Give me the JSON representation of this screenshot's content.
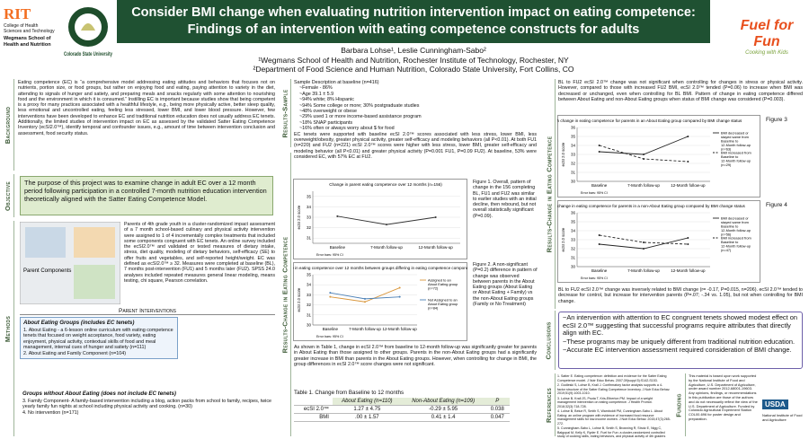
{
  "header": {
    "title_line1": "Consider BMI change when evaluating nutrition intervention impact on eating competence:",
    "title_line2": "Findings of an intervention with eating competence constructs for adults",
    "authors": "Barbara Lohse¹, Leslie Cunningham-Sabo²",
    "affil1": "¹Wegmans School of Health and Nutrition, Rochester Institute of Technology, Rochester, NY",
    "affil2": "²Department of Food Science and Human Nutrition, Colorado State University, Fort Collins, CO",
    "rit": "RIT",
    "rit_sub": "College of Health Sciences and Technology",
    "rit_sub2": "Wegmans School of Health and Nutrition",
    "csu": "Colorado State University",
    "fuel": "Fuel for Fun",
    "fuel_sub": "Cooking with Kids"
  },
  "background": {
    "label": "Background",
    "text": "Eating competence (EC) is “a comprehensive model addressing eating attitudes and behaviors that focuses not on nutrients, portion size, or food groups, but rather on enjoying food and eating, paying attention to variety in the diet, attending to signals of hunger and satiety, and preparing meals and snacks regularly with some attention to nourishing food and the environment in which it is consumed.” Instilling EC is important because studies show that being competent is a proxy for many practices associated with a healthful lifestyle, e.g., being more physically active, better sleep quality, less emotional and uncontrolled eating, feeling less stressed, lower BMI, and lower blood pressure. However, few interventions have been developed to enhance EC and traditional nutrition education does not usually address EC tenets. Additionally, the limited studies of intervention impact on EC as assessed by the validated Satter Eating Competence Inventory (ecSI2.0™), identify temporal and confounder issues, e.g., amount of time between intervention conclusion and assessment, food security status."
  },
  "objective": {
    "label": "Objective",
    "text": "The purpose of this project was to examine change in adult EC over a 12 month period following participation in a controlled 7-month nutrition education intervention theoretically aligned with the Satter Eating Competence Model."
  },
  "methods": {
    "label": "Methods",
    "image_label": "Parent Components",
    "text": "Parents of 4th grade youth in a cluster-randomized impact assessment of a 7 month school-based culinary and physical activity intervention were assigned to 1 of 4 incrementally complex treatments that included some components congruent with EC tenets. An online survey included the ecSI2.0™ and validated or tested measures of dietary intake, stress, diet quality, modeling of dietary behaviors, self-efficacy (SE) to offer fruits and vegetables, and self-reported height/weight. EC was defined as ecSI2.0™ ≥ 32. Measures were completed at baseline (BL), 7 months post-intervention (FU1) and 5 months later (FU2). SPSS 24.0 analyses included repeated measures general linear modeling, means testing, chi square, Pearson correlation.",
    "interventions_heading": "Parent Interventions",
    "group1_heading": "About Eating Groups (includes EC tenets)",
    "group1_items": [
      "1. About Eating - a 6-lesson online curriculum with eating competence tenets that focused on weight acceptance, food variety, eating enjoyment, physical activity, contextual skills of food and meal management, internal cues of hunger and satiety (n=111)",
      "2. About Eating and Family Component (n=104)"
    ],
    "group2_heading": "Groups without About Eating (does not include EC tenets)",
    "group2_items": [
      "3. Family Component- A family-based intervention including a blog, action packs from school to family, recipes, twice yearly family fun nights at school including physical activity and cooking. (n=30)",
      "4. No intervention (n=171)"
    ]
  },
  "sample": {
    "label": "Results-Sample",
    "heading": "Sample Description at baseline (n=416)",
    "items": [
      "~Female - 86%",
      "~Age 39.1 ± 5.9",
      "~94% white; 8% Hispanic",
      "~94% Some college or more; 30% postgraduate studies",
      "~48% overweight or obese",
      "~29% used 1 or more income-based assistance program",
      "~18% SNAP participants",
      "~16% often or always worry about $ for food"
    ],
    "text": "EC tenets were supported with baseline ecSI 2.0™ scores associated with less stress, lower BMI, less overweight/obesity, greater physical activity, greater self-efficacy and modeling behaviors (all P<0.01). At both FU1 (n=220) and FU2 (n=221) ecSI 2.0™ scores were higher with less stress, lower BMI, greater self-efficacy and modeling behavior (all P<0.01) and greater physical activity (P=0.001 FU1, P=0.09 FU2). At baseline, 53% were considered EC, with 57% EC at FU2."
  },
  "change": {
    "label": "Results-Change in Eating Competence",
    "fig1_caption": "Figure 1. Overall, pattern of change in the 156 completing BL, FU1 and FU2 was similar to earlier studies with an initial decline, then rebound, but not overall statistically significant (P=0.09).",
    "fig2_caption": "Figure 2. A non-significant (P=0.2) difference in pattern of change was observed between parents in the About Eating groups (About Eating or About Eating + Family) vs the non-About Eating groups (Family or No Treatment)",
    "text": "As shown in Table 1, change in ecSI 2.0™ from baseline to 12-month follow-up was significantly greater for parents in About Eating than those assigned to other groups. Parents in the non-About Eating groups had a significantly greater increase in BMI than parents in the About Eating groups. However, when controlling for change in BMI, the group differences in ecSI 2.0™ score changes were not significant.",
    "table": {
      "title": "Table 1. Change from Baseline to 12 months",
      "header": [
        "About Eating (n=110)",
        "Non-About Eating (n=109)",
        "P"
      ],
      "rows": [
        [
          "ecSI 2.0™",
          "1.27 ± 4.75",
          "-0.29 ± 5.95",
          "0.038"
        ],
        [
          "BMI",
          ".00 ± 1.57",
          "0.41 ± 1.4",
          "0.047"
        ]
      ]
    },
    "text2": "BL to FU2 ecSI 2.0™ change was not significant when controlling for changes in stress or physical activity. However, compared to those with increased FU2 BMI, ecSI 2.0™ tended (P=0.06) to increase when BMI was decreased or unchanged, even when controlling for BL BMI. Pattern of change in eating competence differed between About Eating and non-About Eating groups when status of BMI change was considered (P=0.003).",
    "fig3_label": "Figure 3",
    "fig4_label": "Figure 4",
    "text3": "BL to FU2 ecSI 2.0™ change was inversely related to BMI change (r= -0.17, P=0.015, n=206). ecSI 2.0™ tended to decrease for control, but increase for intervention parents (P=.07; -.34 vs. 1.05), but not when controlling for BMI change."
  },
  "charts": [
    {
      "title": "Change in parent eating competence over 12 months (n=156)",
      "ylabel": "ecSI 2.0 score",
      "xlabels": [
        "Baseline",
        "7-Month follow-up",
        "12-Month follow-up"
      ],
      "note": "Error bars: 95% CI",
      "ylim": [
        30.5,
        35.5
      ],
      "yticks": [
        31,
        32,
        33,
        34,
        35
      ],
      "series": [
        {
          "name": null,
          "color": "#333333",
          "dashed": false,
          "values": [
            33.1,
            32.3,
            33.0
          ]
        }
      ]
    },
    {
      "title": "Comparison of change in eating competence over 12 months between groups differing in eating competence components",
      "ylabel": "ecSI 2.0 score",
      "xlabels": [
        "Baseline",
        "7-Month follow-up",
        "12-Month follow-up"
      ],
      "note": "Error bars: 95% CI",
      "ylim": [
        30,
        35
      ],
      "yticks": [
        30,
        31,
        32,
        33,
        34,
        35
      ],
      "series": [
        {
          "name": "Assigned to an About Eating group (n=72)",
          "color": "#d9963b",
          "dashed": false,
          "values": [
            32.8,
            32.3,
            33.7
          ]
        },
        {
          "name": "Not Assigned to an About Eating group (n=84)",
          "color": "#4a7fb5",
          "dashed": false,
          "values": [
            33.2,
            32.6,
            32.8
          ]
        }
      ]
    },
    {
      "title": "12-month change in eating competence for parents in an About Eating group compared by BMI change status",
      "ylabel": "ecSI 2.0 score",
      "xlabels": [
        "Baseline",
        "7-Month follow-up",
        "12-Month follow-up"
      ],
      "note": "Error bars: 95% CI",
      "ylim": [
        30,
        36
      ],
      "yticks": [
        30,
        31,
        32,
        33,
        34,
        35,
        36
      ],
      "series": [
        {
          "name": "BMI decreased or stayed same from Baseline to 12-Month follow-up (n=63)",
          "color": "#222222",
          "dashed": false,
          "values": [
            33.3,
            33.0,
            35.0
          ]
        },
        {
          "name": "BMI increased from Baseline to 12-Month follow-up (n=29)",
          "color": "#222222",
          "dashed": true,
          "values": [
            34.0,
            32.5,
            32.2
          ]
        }
      ]
    },
    {
      "title": "12-month change in eating competence for parents in a non-About Eating group compared by BMI change status",
      "ylabel": "ecSI 2.0 score",
      "xlabels": [
        "Baseline",
        "7-Month follow-up",
        "12-Month follow-up"
      ],
      "note": "Error bars: 95% CI",
      "ylim": [
        30,
        36
      ],
      "yticks": [
        30,
        31,
        32,
        33,
        34,
        35,
        36
      ],
      "series": [
        {
          "name": "BMI decreased or stayed same from Baseline to 12-Month follow-up (n=56)",
          "color": "#222222",
          "dashed": false,
          "values": [
            32.5,
            32.0,
            33.2
          ]
        },
        {
          "name": "BMI increased from Baseline to 12-Month follow-up (n=47)",
          "color": "#222222",
          "dashed": true,
          "values": [
            33.5,
            32.7,
            32.5
          ]
        }
      ]
    }
  ],
  "conclusions": {
    "label": "Conclusions",
    "items": [
      "~An intervention with attention to EC congruent tenets showed modest effect on ecSI 2.0™ suggesting that successful programs require attributes that directly align with EC.",
      "~These programs may be uniquely different from traditional nutrition education.",
      "~Accurate EC intervention assessment required consideration of BMI change."
    ]
  },
  "references": {
    "label": "References",
    "items": [
      "1. Satter E. Eating competence: definition and evidence for the Satter Eating Competence model. J Nutr Educ Behav. 2007;39(suppl 5):S142-S153.",
      "2. Godleski S, Lohse B, Krall J. Confirmatory factor analysis supports a 4-factor structure of the Satter Eating Competence Inventory. J Nutr Educ Behav. 2019;51(9):1003-1010.",
      "3. Lohse B, Krall JS, Psota T, Kris-Etherton PM. Impact of a weight management intervention on eating competence. J Health Promot. 2018;32(3):718-728.",
      "4. Lohse B, Belue R, Smith S, Wamboldt PM, Cunningham-Sabo L. About Eating: an online program with evidence of increased food resource management skills for low-income women. J Nutr Educ Behav. 2015;47(3):265-272.",
      "5. Cunningham-Sabo L, Lohse B, Smith S, Browning R, Strutz E, Nigg C, Balgopal M, Kelly K, Ryder E. Fuel for Fun: a cluster-randomized controlled study of cooking skills, eating behaviors, and physical activity of 4th graders and their families. BMC Public Health. 2016;16:444."
    ]
  },
  "funding": {
    "label": "Funding",
    "text": "This material is based upon work supported by the National Institute of Food and Agriculture, U.S. Department of Agriculture, under award number 2012-68001-19603. Any opinions, findings, or recommendations in this publication are those of the authors and do not necessarily reflect the view of the U.S. Department of Agriculture. Funded by Colorado Agricultural Experiment Station COL00-696 for poster design and preparation.",
    "usda": "USDA",
    "nifa": "National Institute of Food and Agriculture"
  }
}
